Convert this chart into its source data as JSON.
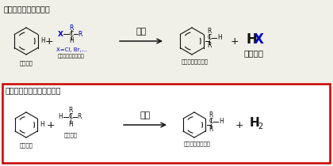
{
  "title_top": "従来のアルキル化反応",
  "title_bottom": "副生成物を低減した本手法",
  "catalyst_top": "触媒",
  "catalyst_bottom": "触媒",
  "byproduct_sub": "副生成物",
  "benzene_label": "ベンゼン",
  "haloalkyl_label_top": "ハロゲン化アルキル",
  "x_label": "X=Cl, Br,...",
  "alkylbenzene_label": "アルキルベンゼン",
  "alkane_label": "アルカン",
  "bg_color": "#f0f0e8",
  "box_color": "#cc0000",
  "blue_color": "#0000cc",
  "black_color": "#111111",
  "figwidth": 4.2,
  "figheight": 2.1,
  "dpi": 100
}
